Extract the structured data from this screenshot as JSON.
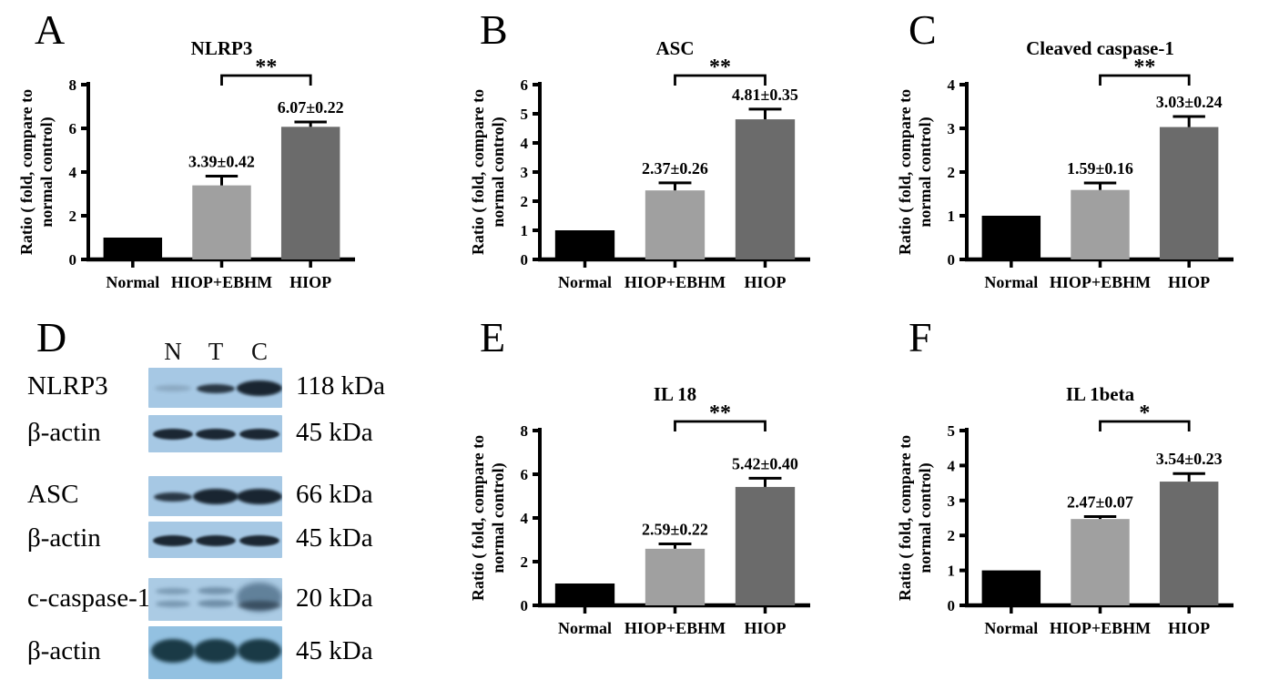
{
  "panel_letters": {
    "A": "A",
    "B": "B",
    "C": "C",
    "D": "D",
    "E": "E",
    "F": "F"
  },
  "chart_data": [
    {
      "id": "A",
      "type": "bar",
      "title": "NLRP3",
      "ylabel_lines": [
        "Ratio ( fold, compare to",
        "normal control)"
      ],
      "categories": [
        "Normal",
        "HIOP+EBHM",
        "HIOP"
      ],
      "values": [
        1.0,
        3.39,
        6.07
      ],
      "errors": [
        0,
        0.42,
        0.22
      ],
      "bar_labels": [
        "",
        "3.39±0.42",
        "6.07±0.22"
      ],
      "ylim": [
        0,
        8
      ],
      "ytick_step": 2,
      "grid": false,
      "legend": "none",
      "significance": {
        "label": "**",
        "between": [
          "HIOP+EBHM",
          "HIOP"
        ]
      },
      "bar_colors": [
        "#000000",
        "#a0a0a0",
        "#6b6b6b"
      ]
    },
    {
      "id": "B",
      "type": "bar",
      "title": "ASC",
      "ylabel_lines": [
        "Ratio ( fold, compare to",
        "normal control)"
      ],
      "categories": [
        "Normal",
        "HIOP+EBHM",
        "HIOP"
      ],
      "values": [
        1.0,
        2.37,
        4.81
      ],
      "errors": [
        0,
        0.26,
        0.35
      ],
      "bar_labels": [
        "",
        "2.37±0.26",
        "4.81±0.35"
      ],
      "ylim": [
        0,
        6
      ],
      "ytick_step": 1,
      "grid": false,
      "legend": "none",
      "significance": {
        "label": "**",
        "between": [
          "HIOP+EBHM",
          "HIOP"
        ]
      },
      "bar_colors": [
        "#000000",
        "#a0a0a0",
        "#6b6b6b"
      ]
    },
    {
      "id": "C",
      "type": "bar",
      "title": "Cleaved caspase-1",
      "ylabel_lines": [
        "Ratio ( fold, compare to",
        "normal control)"
      ],
      "categories": [
        "Normal",
        "HIOP+EBHM",
        "HIOP"
      ],
      "values": [
        1.0,
        1.59,
        3.03
      ],
      "errors": [
        0,
        0.16,
        0.24
      ],
      "bar_labels": [
        "",
        "1.59±0.16",
        "3.03±0.24"
      ],
      "ylim": [
        0,
        4
      ],
      "ytick_step": 1,
      "grid": false,
      "legend": "none",
      "significance": {
        "label": "**",
        "between": [
          "HIOP+EBHM",
          "HIOP"
        ]
      },
      "bar_colors": [
        "#000000",
        "#a0a0a0",
        "#6b6b6b"
      ]
    },
    {
      "id": "E",
      "type": "bar",
      "title": "IL 18",
      "ylabel_lines": [
        "Ratio ( fold, compare to",
        "normal control)"
      ],
      "categories": [
        "Normal",
        "HIOP+EBHM",
        "HIOP"
      ],
      "values": [
        1.0,
        2.59,
        5.42
      ],
      "errors": [
        0,
        0.22,
        0.4
      ],
      "bar_labels": [
        "",
        "2.59±0.22",
        "5.42±0.40"
      ],
      "ylim": [
        0,
        8
      ],
      "ytick_step": 2,
      "grid": false,
      "legend": "none",
      "significance": {
        "label": "**",
        "between": [
          "HIOP+EBHM",
          "HIOP"
        ]
      },
      "bar_colors": [
        "#000000",
        "#a0a0a0",
        "#6b6b6b"
      ]
    },
    {
      "id": "F",
      "type": "bar",
      "title": "IL 1beta",
      "ylabel_lines": [
        "Ratio ( fold, compare to",
        "normal control)"
      ],
      "categories": [
        "Normal",
        "HIOP+EBHM",
        "HIOP"
      ],
      "values": [
        1.0,
        2.47,
        3.54
      ],
      "errors": [
        0,
        0.07,
        0.23
      ],
      "bar_labels": [
        "",
        "2.47±0.07",
        "3.54±0.23"
      ],
      "ylim": [
        0,
        5
      ],
      "ytick_step": 1,
      "grid": false,
      "legend": "none",
      "significance": {
        "label": "*",
        "between": [
          "HIOP+EBHM",
          "HIOP"
        ]
      },
      "bar_colors": [
        "#000000",
        "#a0a0a0",
        "#6b6b6b"
      ]
    }
  ],
  "blot": {
    "lanes": [
      "N",
      "T",
      "C"
    ],
    "rows": [
      {
        "protein": "NLRP3",
        "kda": "118 kDa",
        "band_intensities": [
          "trace",
          "medium",
          "heavy"
        ]
      },
      {
        "protein": "β-actin",
        "kda": "45 kDa",
        "band_intensities": [
          "strong",
          "strong",
          "strong"
        ]
      },
      {
        "protein": "ASC",
        "kda": "66 kDa",
        "band_intensities": [
          "medium",
          "heavy",
          "heavy"
        ]
      },
      {
        "protein": "β-actin",
        "kda": "45 kDa",
        "band_intensities": [
          "strong",
          "strong",
          "strong"
        ]
      },
      {
        "protein": "c-caspase-1",
        "kda": "20 kDa",
        "band_intensities": [
          "double-faint",
          "double-light",
          "smear"
        ]
      },
      {
        "protein": "β-actin",
        "kda": "45 kDa",
        "band_intensities": [
          "blob",
          "blob",
          "blob"
        ]
      }
    ],
    "colors": {
      "strip_bg": "#a6c8e4",
      "strip_bg_caspase": "#abcbe4",
      "strip_bg_last": "#93c1e1",
      "band_dark": "#141f2a",
      "band_caspase": "#4f6e88",
      "band_teal": "#14333e"
    }
  }
}
